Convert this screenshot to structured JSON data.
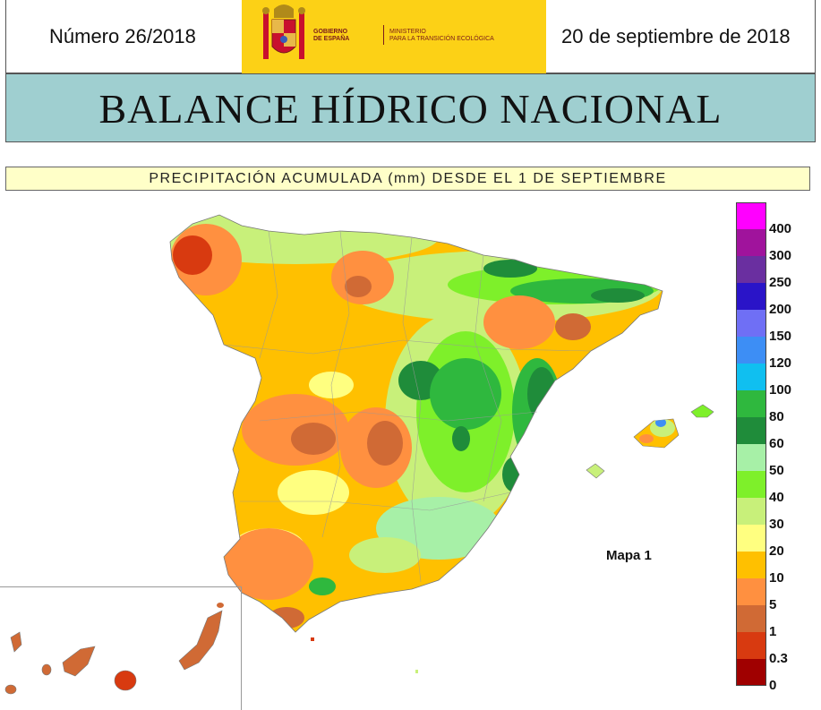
{
  "header": {
    "issue": "Número 26/2018",
    "date": "20 de septiembre de 2018",
    "logo": {
      "icon": "spain-coat-of-arms-icon",
      "line1": "GOBIERNO",
      "line2": "DE ESPAÑA",
      "line3": "MINISTERIO",
      "line4": "PARA LA TRANSICIÓN ECOLÓGICA"
    }
  },
  "title": "BALANCE HÍDRICO NACIONAL",
  "subtitle": "PRECIPITACIÓN ACUMULADA (mm) DESDE EL 1 DE SEPTIEMBRE",
  "map": {
    "label": "Mapa 1"
  },
  "legend": {
    "items": [
      {
        "label": "400",
        "color": "#ff00ff"
      },
      {
        "label": "300",
        "color": "#a0139c"
      },
      {
        "label": "250",
        "color": "#6a2fa0"
      },
      {
        "label": "200",
        "color": "#2a14c8"
      },
      {
        "label": "150",
        "color": "#6f6ff5"
      },
      {
        "label": "120",
        "color": "#3d8ef5"
      },
      {
        "label": "100",
        "color": "#10bff0"
      },
      {
        "label": "80",
        "color": "#2fb83e"
      },
      {
        "label": "60",
        "color": "#1f8c3a"
      },
      {
        "label": "50",
        "color": "#a7f0a7"
      },
      {
        "label": "40",
        "color": "#7ef02a"
      },
      {
        "label": "30",
        "color": "#c8f07a"
      },
      {
        "label": "20",
        "color": "#ffff80"
      },
      {
        "label": "10",
        "color": "#ffc000"
      },
      {
        "label": "5",
        "color": "#ff9040"
      },
      {
        "label": "1",
        "color": "#d06a35"
      },
      {
        "label": "0.3",
        "color": "#d83a10"
      },
      {
        "label": "0",
        "color": "#a00000"
      }
    ]
  }
}
